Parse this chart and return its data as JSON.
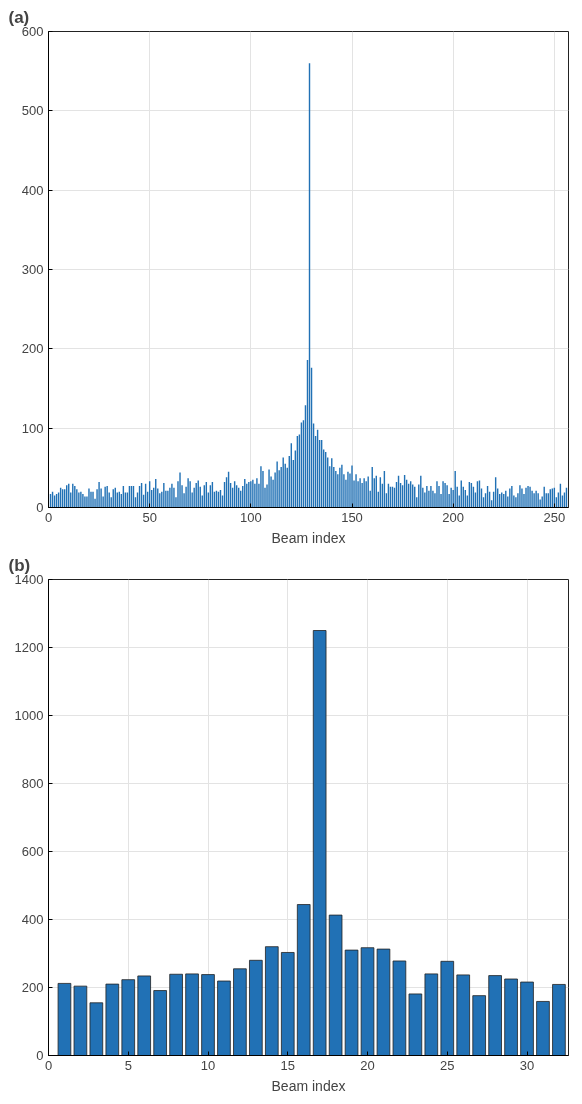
{
  "chart_data": [
    {
      "type": "bar",
      "title": "(a)",
      "xlabel": "Beam index",
      "color": "#2171b5",
      "grid": true,
      "xlim": [
        0,
        257
      ],
      "xticks": [
        0,
        50,
        100,
        150,
        200,
        250
      ],
      "ylim": [
        0,
        600
      ],
      "yticks": [
        0,
        100,
        200,
        300,
        400,
        500,
        600
      ],
      "x": [
        1,
        2,
        3,
        4,
        5,
        6,
        7,
        8,
        9,
        10,
        11,
        12,
        13,
        14,
        15,
        16,
        17,
        18,
        19,
        20,
        21,
        22,
        23,
        24,
        25,
        26,
        27,
        28,
        29,
        30,
        31,
        32,
        33,
        34,
        35,
        36,
        37,
        38,
        39,
        40,
        41,
        42,
        43,
        44,
        45,
        46,
        47,
        48,
        49,
        50,
        51,
        52,
        53,
        54,
        55,
        56,
        57,
        58,
        59,
        60,
        61,
        62,
        63,
        64,
        65,
        66,
        67,
        68,
        69,
        70,
        71,
        72,
        73,
        74,
        75,
        76,
        77,
        78,
        79,
        80,
        81,
        82,
        83,
        84,
        85,
        86,
        87,
        88,
        89,
        90,
        91,
        92,
        93,
        94,
        95,
        96,
        97,
        98,
        99,
        100,
        101,
        102,
        103,
        104,
        105,
        106,
        107,
        108,
        109,
        110,
        111,
        112,
        113,
        114,
        115,
        116,
        117,
        118,
        119,
        120,
        121,
        122,
        123,
        124,
        125,
        126,
        127,
        128,
        129,
        130,
        131,
        132,
        133,
        134,
        135,
        136,
        137,
        138,
        139,
        140,
        141,
        142,
        143,
        144,
        145,
        146,
        147,
        148,
        149,
        150,
        151,
        152,
        153,
        154,
        155,
        156,
        157,
        158,
        159,
        160,
        161,
        162,
        163,
        164,
        165,
        166,
        167,
        168,
        169,
        170,
        171,
        172,
        173,
        174,
        175,
        176,
        177,
        178,
        179,
        180,
        181,
        182,
        183,
        184,
        185,
        186,
        187,
        188,
        189,
        190,
        191,
        192,
        193,
        194,
        195,
        196,
        197,
        198,
        199,
        200,
        201,
        202,
        203,
        204,
        205,
        206,
        207,
        208,
        209,
        210,
        211,
        212,
        213,
        214,
        215,
        216,
        217,
        218,
        219,
        220,
        221,
        222,
        223,
        224,
        225,
        226,
        227,
        228,
        229,
        230,
        231,
        232,
        233,
        234,
        235,
        236,
        237,
        238,
        239,
        240,
        241,
        242,
        243,
        244,
        245,
        246,
        247,
        248,
        249,
        250,
        251,
        252,
        253,
        254,
        255,
        256
      ],
      "values": [
        17,
        20,
        15,
        17,
        19,
        25,
        23,
        23,
        28,
        30,
        19,
        30,
        27,
        23,
        19,
        20,
        17,
        14,
        14,
        24,
        20,
        20,
        11,
        23,
        32,
        24,
        14,
        26,
        27,
        19,
        13,
        23,
        25,
        19,
        20,
        17,
        27,
        19,
        19,
        27,
        27,
        27,
        13,
        19,
        27,
        31,
        16,
        30,
        20,
        33,
        22,
        25,
        36,
        24,
        18,
        20,
        31,
        21,
        21,
        25,
        30,
        25,
        13,
        33,
        44,
        28,
        18,
        26,
        37,
        33,
        19,
        25,
        31,
        34,
        26,
        15,
        28,
        32,
        19,
        28,
        32,
        20,
        21,
        20,
        22,
        15,
        32,
        38,
        45,
        31,
        25,
        33,
        28,
        25,
        21,
        27,
        36,
        30,
        32,
        33,
        35,
        30,
        37,
        30,
        52,
        46,
        25,
        29,
        48,
        39,
        35,
        44,
        58,
        47,
        51,
        63,
        55,
        50,
        65,
        81,
        60,
        72,
        90,
        92,
        107,
        110,
        129,
        186,
        560,
        176,
        106,
        90,
        98,
        85,
        85,
        73,
        70,
        63,
        52,
        62,
        51,
        46,
        42,
        50,
        54,
        42,
        35,
        45,
        43,
        53,
        34,
        42,
        33,
        37,
        31,
        37,
        33,
        39,
        21,
        51,
        37,
        40,
        20,
        38,
        30,
        46,
        18,
        30,
        26,
        26,
        25,
        32,
        40,
        31,
        28,
        41,
        35,
        30,
        33,
        29,
        26,
        13,
        29,
        40,
        25,
        19,
        27,
        21,
        27,
        21,
        18,
        33,
        27,
        17,
        33,
        31,
        28,
        17,
        25,
        22,
        46,
        26,
        15,
        34,
        26,
        22,
        15,
        32,
        31,
        26,
        19,
        33,
        34,
        24,
        13,
        18,
        27,
        20,
        9,
        20,
        38,
        24,
        17,
        19,
        17,
        21,
        14,
        24,
        27,
        15,
        13,
        18,
        28,
        24,
        17,
        25,
        27,
        26,
        21,
        18,
        21,
        18,
        10,
        14,
        26,
        18,
        18,
        23,
        24,
        25,
        13,
        19,
        30,
        15,
        19,
        25
      ]
    },
    {
      "type": "bar",
      "title": "(b)",
      "xlabel": "Beam index",
      "color": "#2171b5",
      "grid": true,
      "xlim": [
        0,
        32.6
      ],
      "xticks": [
        0,
        5,
        10,
        15,
        20,
        25,
        30
      ],
      "ylim": [
        0,
        1400
      ],
      "yticks": [
        0,
        200,
        400,
        600,
        800,
        1000,
        1200,
        1400
      ],
      "x": [
        1,
        2,
        3,
        4,
        5,
        6,
        7,
        8,
        9,
        10,
        11,
        12,
        13,
        14,
        15,
        16,
        17,
        18,
        19,
        20,
        21,
        22,
        23,
        24,
        25,
        26,
        27,
        28,
        29,
        30,
        31,
        32
      ],
      "values": [
        212,
        204,
        155,
        210,
        223,
        234,
        191,
        239,
        240,
        238,
        219,
        255,
        280,
        320,
        303,
        444,
        1250,
        413,
        310,
        317,
        313,
        278,
        181,
        240,
        277,
        237,
        176,
        235,
        225,
        216,
        159,
        209
      ]
    }
  ]
}
